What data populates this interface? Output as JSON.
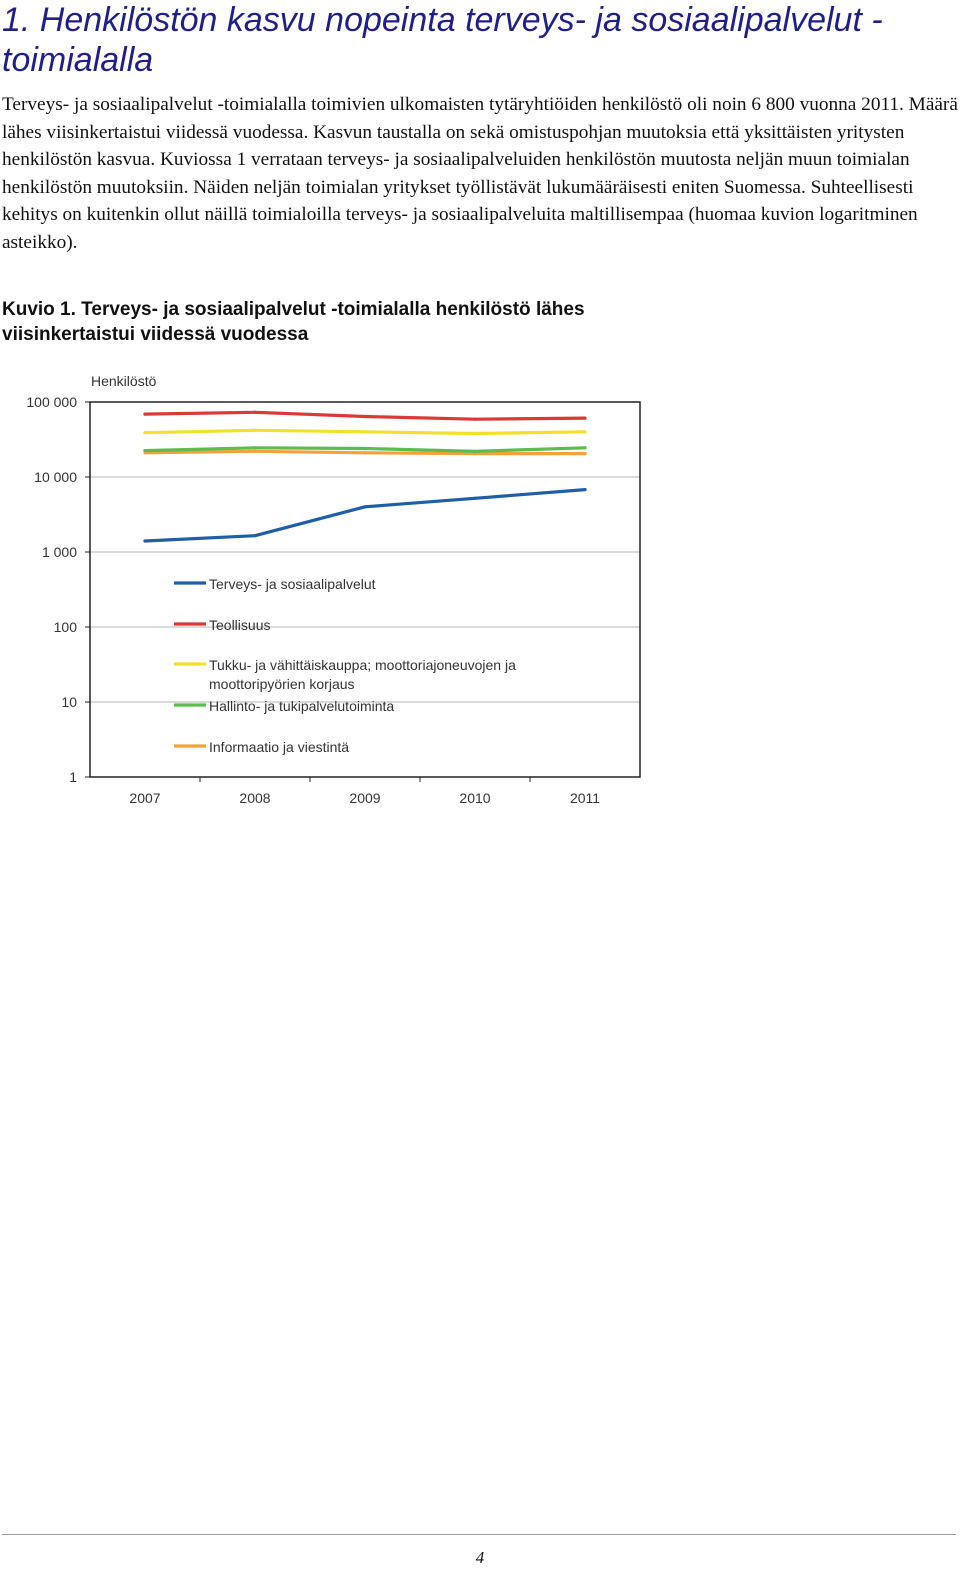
{
  "document": {
    "heading": "1. Henkilöstön kasvu nopeinta terveys- ja sosiaalipalvelut -toimialalla",
    "paragraph": "Terveys- ja sosiaalipalvelut -toimialalla toimivien ulkomaisten tytäryhtiöiden henkilöstö oli noin 6 800 vuonna 2011. Määrä lähes viisinkertaistui viidessä vuodessa. Kasvun taustalla on sekä omistuspohjan muutoksia että yksittäisten yritysten henkilöstön kasvua. Kuviossa 1 verrataan terveys- ja sosiaalipalveluiden henkilöstön muutosta neljän muun toimialan henkilöstön muutoksiin. Näiden neljän toimialan yritykset työllistävät lukumääräisesti eniten Suomessa. Suhteellisesti kehitys on kuitenkin ollut näillä toimialoilla terveys- ja sosiaalipalveluita maltillisempaa (huomaa kuvion logaritminen asteikko).",
    "figure_caption": "Kuvio 1. Terveys- ja sosiaalipalvelut -toimialalla henkilöstö lähes viisinkertaistui viidessä vuodessa",
    "page_number": "4"
  },
  "chart_data": {
    "type": "line",
    "title": "",
    "ylabel": "Henkilöstö",
    "xlabel": "",
    "y_scale": "log",
    "ylim": [
      1,
      100000
    ],
    "y_ticks": [
      {
        "value": 100000,
        "label": "100 000"
      },
      {
        "value": 10000,
        "label": "10 000"
      },
      {
        "value": 1000,
        "label": "1 000"
      },
      {
        "value": 100,
        "label": "100"
      },
      {
        "value": 10,
        "label": "10"
      },
      {
        "value": 1,
        "label": "1"
      }
    ],
    "categories": [
      "2007",
      "2008",
      "2009",
      "2010",
      "2011"
    ],
    "grid": true,
    "legend_position": "inside-left",
    "series": [
      {
        "name": "Terveys- ja sosiaalipalvelut",
        "color": "#1f5fa8",
        "values": [
          1400,
          1650,
          4000,
          5200,
          6800
        ]
      },
      {
        "name": "Teollisuus",
        "color": "#d93a36",
        "values": [
          69000,
          73000,
          64000,
          59000,
          61000
        ]
      },
      {
        "name": "Tukku- ja vähittäiskauppa; moottoriajoneuvojen ja moottoripyörien korjaus",
        "color": "#f2e12b",
        "values": [
          39000,
          42000,
          40000,
          38000,
          40000
        ]
      },
      {
        "name": "Hallinto- ja tukipalvelutoiminta",
        "color": "#5cbc4f",
        "values": [
          22500,
          24500,
          24000,
          22000,
          24500
        ]
      },
      {
        "name": "Informaatio ja viestintä",
        "color": "#f2a23a",
        "values": [
          21000,
          22000,
          21000,
          20500,
          20500
        ]
      }
    ]
  }
}
